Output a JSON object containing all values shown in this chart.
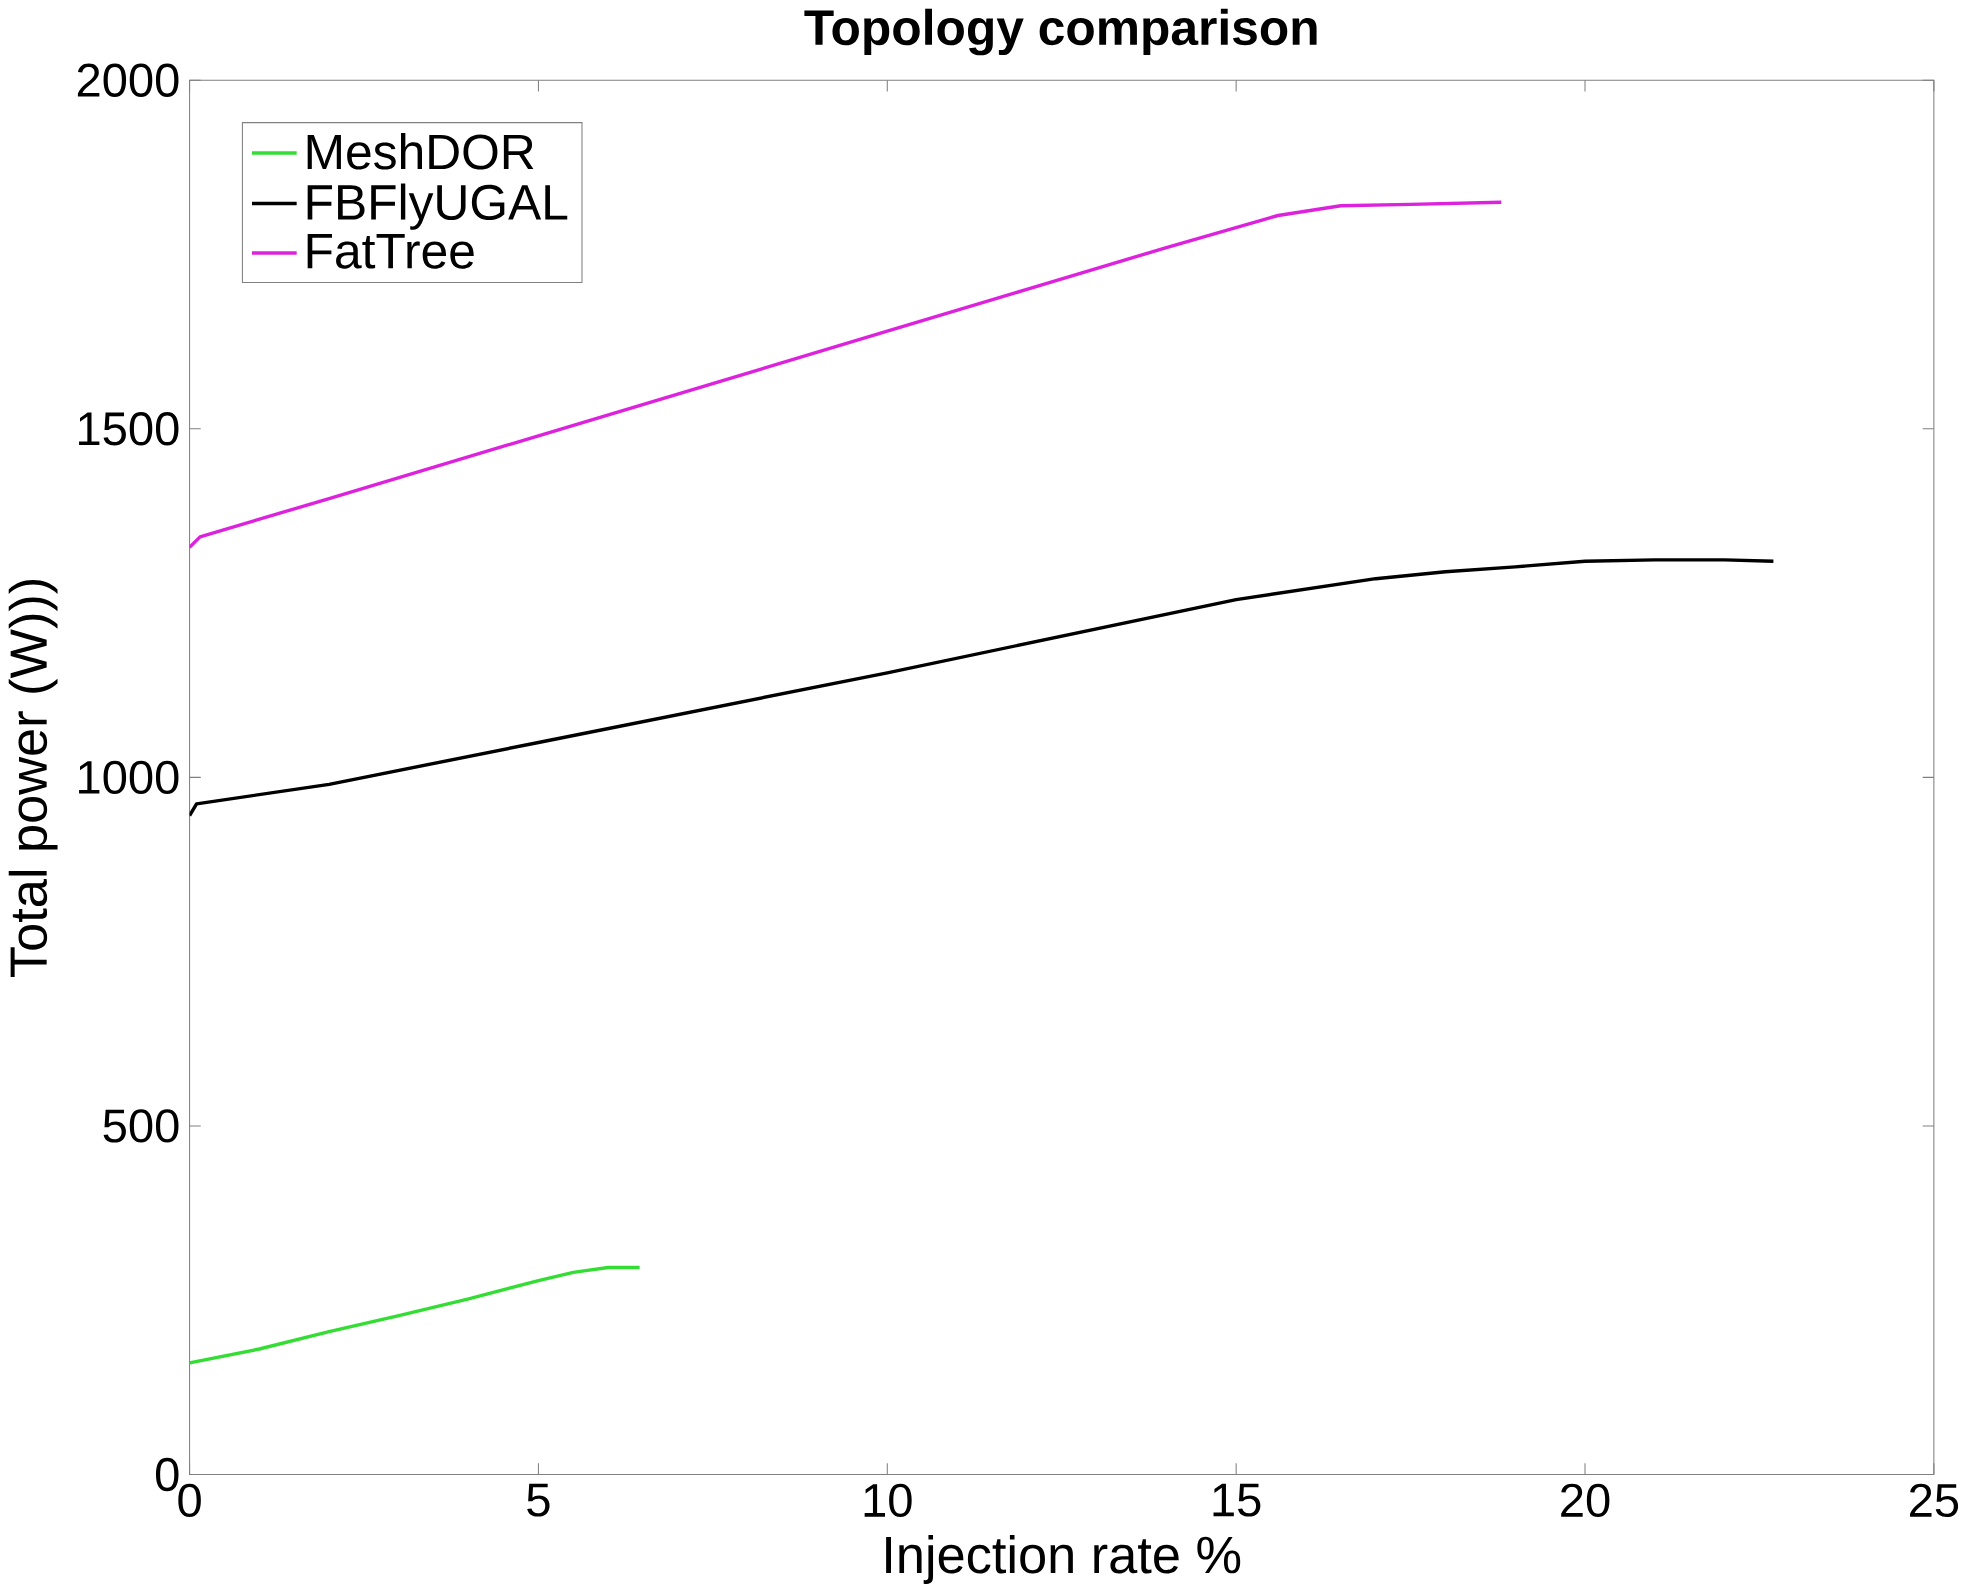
{
  "chart_data": {
    "type": "line",
    "title": "Topology comparison",
    "xlabel": "Injection rate %",
    "ylabel": "Total power (W)))",
    "xlim": [
      0,
      25
    ],
    "ylim": [
      0,
      2000
    ],
    "xticks": [
      0,
      5,
      10,
      15,
      20,
      25
    ],
    "yticks": [
      0,
      500,
      1000,
      1500,
      2000
    ],
    "legend": "top left",
    "grid": false,
    "marker": "none",
    "line_style": "solid",
    "series": [
      {
        "name": "MeshDOR",
        "color": "#33dd33",
        "x": [
          0,
          1,
          2,
          3,
          4,
          5,
          5.5,
          6,
          6.45
        ],
        "values": [
          160,
          180,
          205,
          228,
          252,
          278,
          290,
          297,
          297
        ]
      },
      {
        "name": "FBFlyUGAL",
        "color": "#000000",
        "x": [
          0,
          0.1,
          2,
          5,
          10,
          15,
          17,
          18,
          19,
          20,
          21,
          22,
          22.7
        ],
        "values": [
          945,
          962,
          990,
          1050,
          1150,
          1255,
          1285,
          1295,
          1302,
          1310,
          1312,
          1312,
          1310
        ]
      },
      {
        "name": "FatTree",
        "color": "#dd22dd",
        "x": [
          0,
          0.15,
          2,
          5,
          8,
          10,
          12,
          14,
          15.6,
          16.5,
          17.5,
          18.8
        ],
        "values": [
          1330,
          1345,
          1400,
          1490,
          1580,
          1640,
          1700,
          1760,
          1806,
          1820,
          1822,
          1825
        ]
      }
    ]
  }
}
